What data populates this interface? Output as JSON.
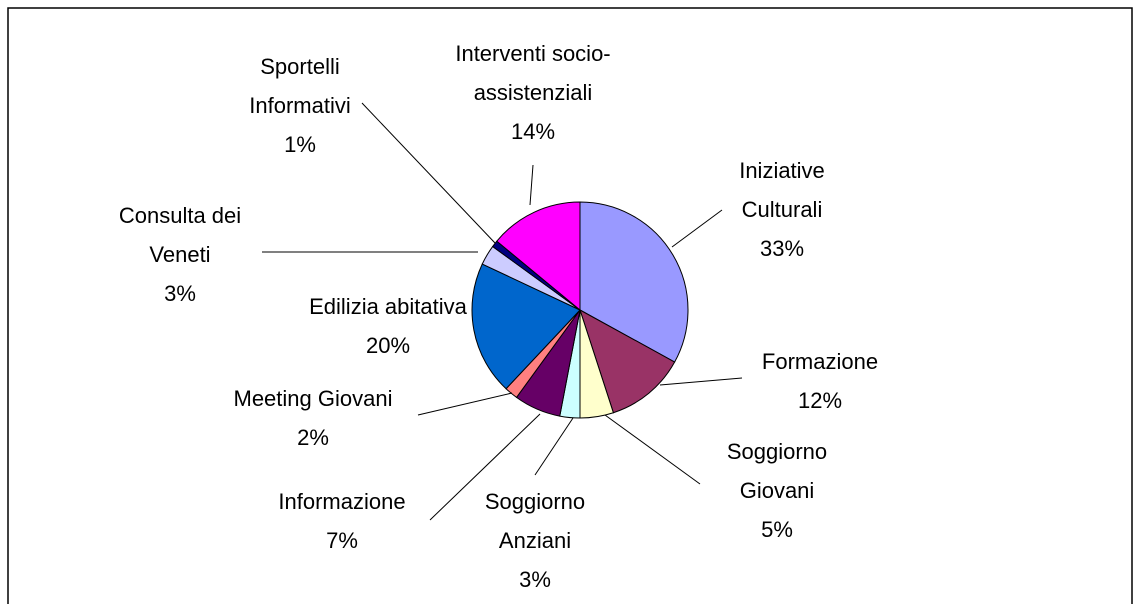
{
  "chart_data": {
    "type": "pie",
    "categories": [
      "Iniziative Culturali",
      "Formazione",
      "Soggiorno Giovani",
      "Soggiorno Anziani",
      "Informazione",
      "Meeting Giovani",
      "Edilizia abitativa",
      "Consulta dei Veneti",
      "Sportelli Informativi",
      "Interventi socio-assistenziali"
    ],
    "values": [
      33,
      12,
      5,
      3,
      7,
      2,
      20,
      3,
      1,
      14
    ],
    "value_labels": [
      "33%",
      "12%",
      "5%",
      "3%",
      "7%",
      "2%",
      "20%",
      "3%",
      "1%",
      "14%"
    ],
    "colors": [
      "#9999ff",
      "#993366",
      "#ffffcc",
      "#ccffff",
      "#660066",
      "#ff8080",
      "#0066cc",
      "#ccccff",
      "#000080",
      "#ff00ff"
    ]
  }
}
